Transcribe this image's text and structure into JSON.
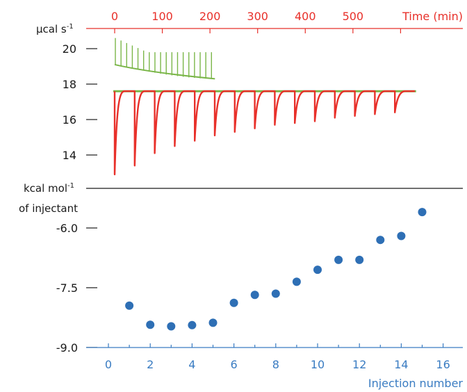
{
  "colors": {
    "red": "#e8302a",
    "green": "#7ab648",
    "blue": "#2e6fb5",
    "blue_text": "#3a7cc2",
    "black": "#1a1a1a"
  },
  "chart_data": [
    {
      "type": "line",
      "panel": "top",
      "ylabel": "µcal s",
      "ylabel_sup": "-1",
      "xlabel": "Time (min)",
      "x_axis_position": "top",
      "xlim": [
        0,
        690
      ],
      "ylim": [
        12.5,
        20.8
      ],
      "x_ticks": [
        0,
        100,
        200,
        300,
        400,
        500
      ],
      "y_ticks": [
        14,
        16,
        18,
        20
      ],
      "series": [
        {
          "role": "sample-titration-trace",
          "color": "red",
          "baseline": 17.6,
          "injection_times": [
            0,
            38,
            76,
            114,
            152,
            190,
            228,
            266,
            304,
            342,
            380,
            418,
            456,
            494,
            532,
            570
          ],
          "peak_minima": [
            12.9,
            13.4,
            14.1,
            14.5,
            14.8,
            15.1,
            15.3,
            15.5,
            15.7,
            15.8,
            15.9,
            16.1,
            16.2,
            16.3,
            16.4
          ]
        },
        {
          "role": "control-dilution-trace",
          "color": "green",
          "x_range": [
            0,
            190
          ],
          "baseline_start": 19.1,
          "baseline_end": 18.3,
          "spike_count": 18,
          "spike_top_first": 20.6,
          "spike_top_last": 19.8
        },
        {
          "role": "reference-baseline",
          "color": "green",
          "value": 17.6,
          "x_range": [
            0,
            580
          ]
        }
      ]
    },
    {
      "type": "scatter",
      "panel": "bottom",
      "ylabel_line1": "kcal mol",
      "ylabel_sup": "-1",
      "ylabel_line2": "of injectant",
      "xlabel": "Injection number",
      "xlim": [
        -1,
        16.8
      ],
      "ylim": [
        -9.0,
        -5.0
      ],
      "x_ticks": [
        0,
        2,
        4,
        6,
        8,
        10,
        12,
        14,
        16
      ],
      "y_ticks": [
        -9.0,
        -7.5,
        -6.0
      ],
      "y_tick_labels": [
        "-9.0",
        "-7.5",
        "-6.0"
      ],
      "x": [
        1,
        2,
        3,
        4,
        5,
        6,
        7,
        8,
        9,
        10,
        11,
        12,
        13,
        14,
        15
      ],
      "y": [
        -7.95,
        -8.43,
        -8.47,
        -8.44,
        -8.38,
        -7.88,
        -7.68,
        -7.65,
        -7.35,
        -7.05,
        -6.8,
        -6.8,
        -6.3,
        -6.2,
        -5.6
      ],
      "color": "blue"
    }
  ]
}
